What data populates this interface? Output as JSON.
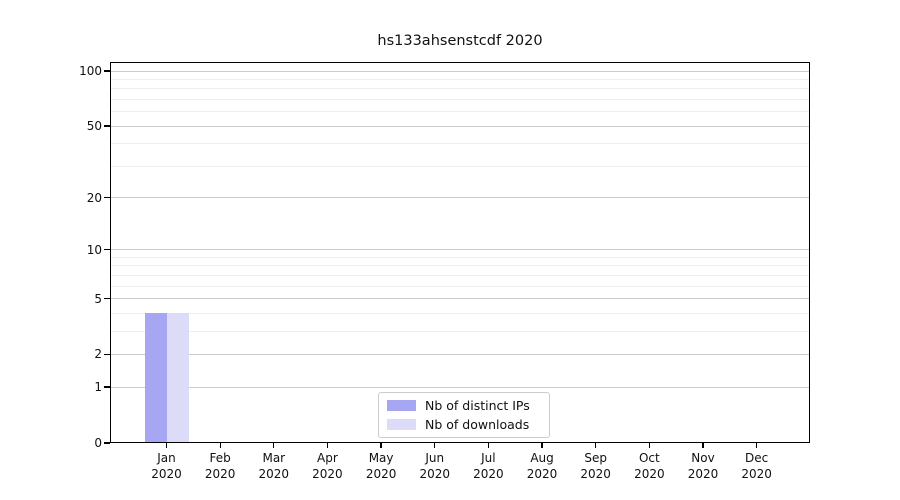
{
  "chart_data": {
    "type": "bar",
    "title": "hs133ahsenstcdf 2020",
    "year_label": "2020",
    "categories": [
      "Jan",
      "Feb",
      "Mar",
      "Apr",
      "May",
      "Jun",
      "Jul",
      "Aug",
      "Sep",
      "Oct",
      "Nov",
      "Dec"
    ],
    "series": [
      {
        "name": "Nb of distinct IPs",
        "color": "#a6a6f3",
        "values": [
          4,
          0,
          0,
          0,
          0,
          0,
          0,
          0,
          0,
          0,
          0,
          0
        ]
      },
      {
        "name": "Nb of downloads",
        "color": "#dcdcf9",
        "values": [
          4,
          0,
          0,
          0,
          0,
          0,
          0,
          0,
          0,
          0,
          0,
          0
        ]
      }
    ],
    "yscale": "log1p",
    "ylim": [
      0,
      112
    ],
    "yticks": [
      {
        "value": 0,
        "label": "0"
      },
      {
        "value": 1,
        "label": "1"
      },
      {
        "value": 2,
        "label": "2"
      },
      {
        "value": 5,
        "label": "5"
      },
      {
        "value": 10,
        "label": "10"
      },
      {
        "value": 20,
        "label": "20"
      },
      {
        "value": 50,
        "label": "50"
      },
      {
        "value": 100,
        "label": "100"
      }
    ],
    "yticks_minor": [
      3,
      4,
      6,
      7,
      8,
      9,
      30,
      40,
      60,
      70,
      80,
      90
    ],
    "grid": "horizontal-only",
    "legend_position": "lower-center-inside",
    "colors": {
      "background": "#ffffff",
      "frame": "#000000",
      "text": "#111111",
      "major_grid": "#cccccc",
      "minor_grid": "#efefef",
      "legend_border": "#cccccc"
    }
  }
}
